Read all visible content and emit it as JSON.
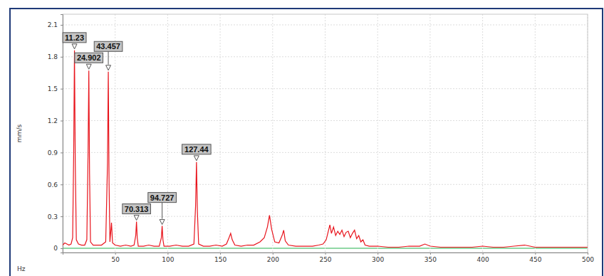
{
  "chart_data": {
    "type": "line",
    "x_label": "Hz",
    "y_label": "mm/s",
    "color": "#e8141c",
    "grid": true,
    "xlim": [
      0,
      500
    ],
    "ylim": [
      -0.04,
      2.2
    ],
    "xticks": [
      50,
      100,
      150,
      200,
      250,
      300,
      350,
      400,
      450,
      500
    ],
    "yticks": [
      0,
      0.3,
      0.6,
      0.9,
      1.2,
      1.5,
      1.8,
      2.1
    ],
    "x": [
      0,
      2,
      4,
      6,
      8,
      9.5,
      10.5,
      11.23,
      12,
      13,
      15,
      18,
      21,
      23,
      24.2,
      24.902,
      25.6,
      26.5,
      29,
      33,
      37,
      41,
      42.7,
      43.457,
      44.2,
      45,
      46.5,
      47.5,
      50,
      55,
      60,
      65,
      68,
      69.6,
      70.313,
      71,
      72,
      77,
      82,
      87,
      92,
      94,
      94.727,
      95.5,
      96.5,
      102,
      108,
      114,
      120,
      125,
      126.6,
      127.44,
      128.3,
      129.5,
      134,
      140,
      146,
      152,
      156,
      158.5,
      160,
      161.5,
      164,
      170,
      176,
      182,
      188,
      192,
      195,
      197,
      199,
      202,
      206,
      209,
      210.5,
      212,
      215,
      222,
      230,
      238,
      244,
      248,
      251,
      253,
      254.5,
      256,
      258,
      260,
      262,
      264,
      266,
      268,
      270,
      272,
      274,
      276,
      278,
      280,
      282,
      284,
      286,
      288,
      292,
      300,
      310,
      320,
      330,
      340,
      345,
      350,
      360,
      370,
      380,
      390,
      400,
      410,
      420,
      430,
      440,
      445,
      450,
      460,
      470,
      480,
      490,
      500
    ],
    "values": [
      0.03,
      0.05,
      0.04,
      0.03,
      0.04,
      0.1,
      0.9,
      1.86,
      0.8,
      0.08,
      0.04,
      0.03,
      0.03,
      0.08,
      0.9,
      1.67,
      0.7,
      0.06,
      0.03,
      0.03,
      0.03,
      0.06,
      0.8,
      1.66,
      0.6,
      0.06,
      0.24,
      0.05,
      0.03,
      0.02,
      0.03,
      0.02,
      0.03,
      0.12,
      0.25,
      0.1,
      0.02,
      0.02,
      0.03,
      0.02,
      0.02,
      0.1,
      0.21,
      0.08,
      0.02,
      0.02,
      0.03,
      0.02,
      0.02,
      0.04,
      0.4,
      0.81,
      0.35,
      0.04,
      0.02,
      0.02,
      0.03,
      0.02,
      0.04,
      0.1,
      0.14,
      0.08,
      0.03,
      0.02,
      0.03,
      0.03,
      0.06,
      0.1,
      0.2,
      0.31,
      0.18,
      0.06,
      0.05,
      0.12,
      0.17,
      0.07,
      0.03,
      0.02,
      0.02,
      0.02,
      0.03,
      0.04,
      0.08,
      0.16,
      0.22,
      0.14,
      0.2,
      0.12,
      0.16,
      0.13,
      0.17,
      0.11,
      0.15,
      0.16,
      0.1,
      0.14,
      0.17,
      0.09,
      0.12,
      0.06,
      0.08,
      0.03,
      0.02,
      0.02,
      0.01,
      0.01,
      0.02,
      0.02,
      0.04,
      0.02,
      0.01,
      0.01,
      0.01,
      0.01,
      0.02,
      0.01,
      0.01,
      0.02,
      0.03,
      0.02,
      0.01,
      0.01,
      0.01,
      0.01,
      0.01,
      0.01
    ],
    "annotations": [
      {
        "label": "11.23",
        "x": 11.23,
        "y": 1.86
      },
      {
        "label": "24.902",
        "x": 24.902,
        "y": 1.67
      },
      {
        "label": "43.457",
        "x": 43.457,
        "y": 1.66
      },
      {
        "label": "70.313",
        "x": 70.313,
        "y": 0.25
      },
      {
        "label": "94.727",
        "x": 94.727,
        "y": 0.21
      },
      {
        "label": "127.44",
        "x": 127.44,
        "y": 0.81
      }
    ]
  }
}
